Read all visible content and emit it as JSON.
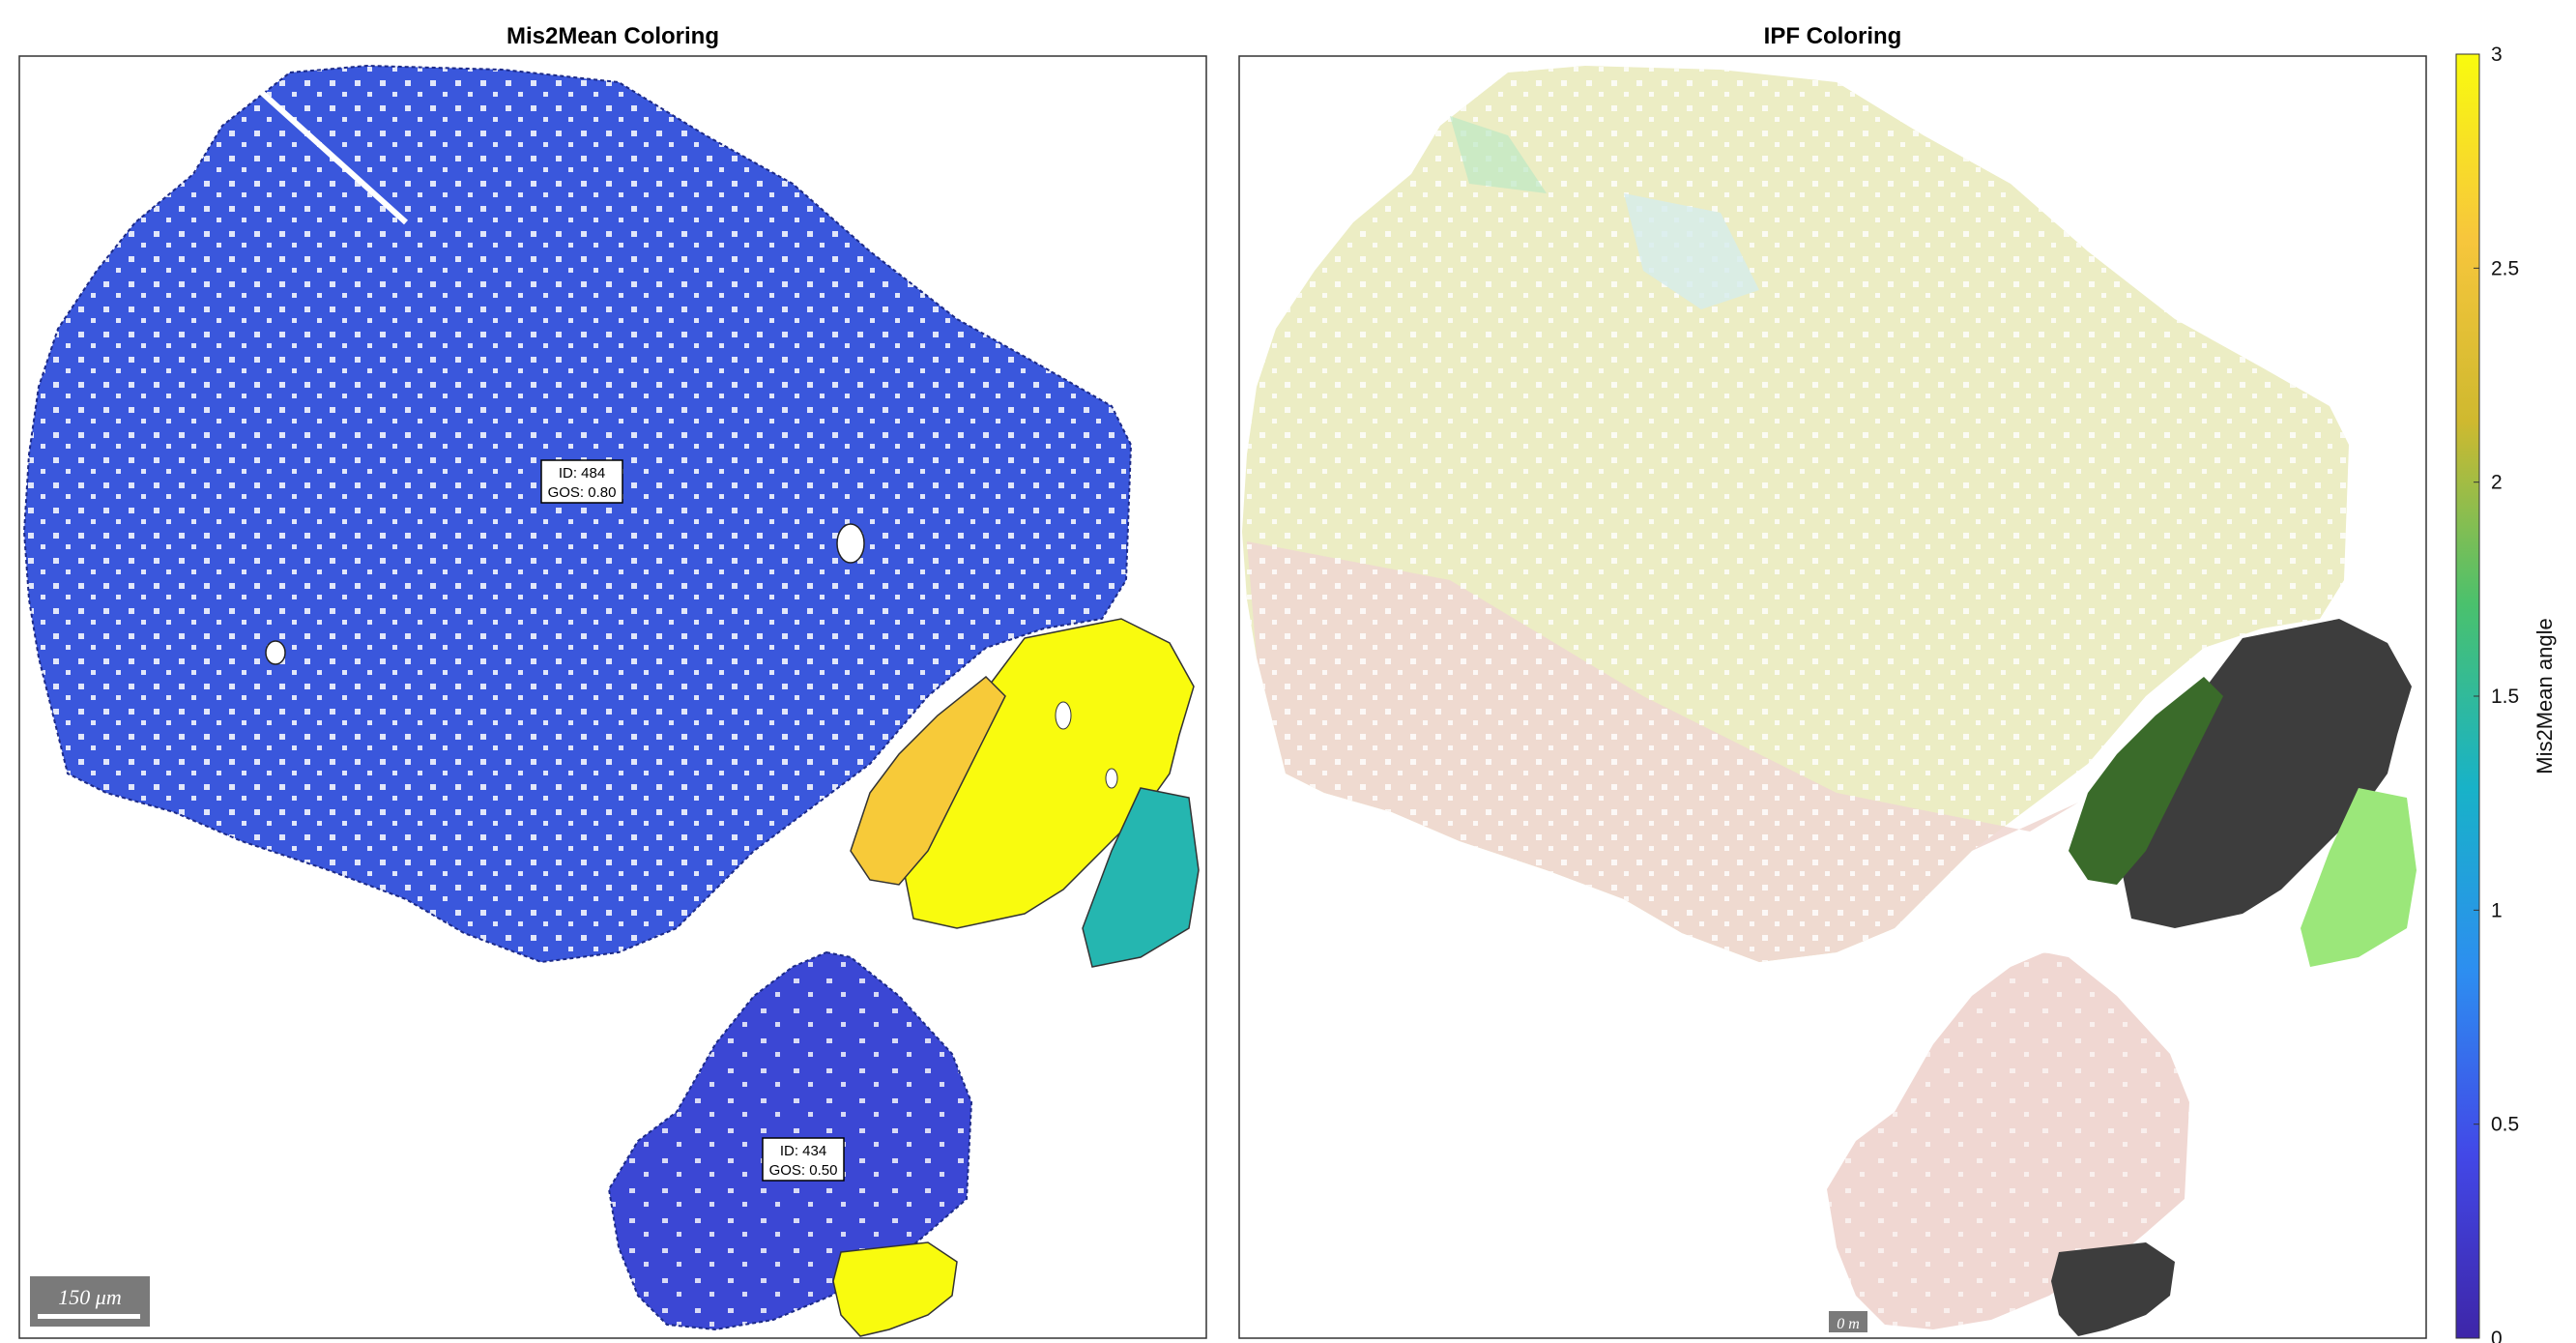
{
  "chart_data": [
    {
      "type": "heatmap",
      "title": "Mis2Mean Coloring",
      "colormap": "parula",
      "grains": [
        {
          "id_label": "ID: 484",
          "gos_label": "GOS: 0.80",
          "mean_value": 0.3
        },
        {
          "id_label": "ID: 434",
          "gos_label": "GOS: 0.50",
          "mean_value": 0.25
        }
      ],
      "neighbor_values": [
        3.0,
        2.6,
        1.4
      ],
      "scalebar": "150 μm"
    },
    {
      "type": "heatmap",
      "title": "IPF Coloring",
      "colors": {
        "main_grain": "#ecedc4",
        "grain_pink": "#f0d7d2",
        "dark_grain": "#3d3d3d",
        "green_grain": "#3a6b2a",
        "light_green": "#9be77a",
        "cyan_tint": "#d6ecec"
      },
      "scalebar": "0 m"
    }
  ],
  "colorbar": {
    "label": "Mis2Mean angle",
    "min": 0,
    "max": 3,
    "ticks": [
      "0",
      "0.5",
      "1",
      "1.5",
      "2",
      "2.5",
      "3"
    ],
    "tick_values": [
      0,
      0.5,
      1,
      1.5,
      2,
      2.5,
      3
    ],
    "colors": [
      "#3e26a8",
      "#4248e7",
      "#2d8ef0",
      "#18b2c8",
      "#4ac16d",
      "#cfb92f",
      "#f7c63c",
      "#f9fb0e"
    ]
  }
}
